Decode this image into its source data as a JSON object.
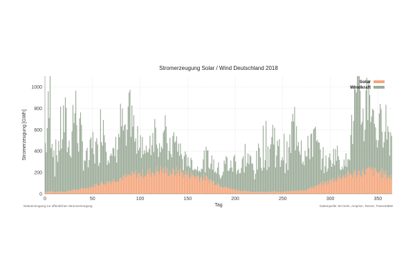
{
  "chart_data": {
    "type": "bar",
    "stacked": true,
    "title": "Stromerzeugung Solar / Wind Deutschland 2018",
    "xlabel": "Tag",
    "ylabel": "Stromerzeugung [GWh]",
    "xlim": [
      0,
      365
    ],
    "ylim": [
      0,
      1100
    ],
    "x_ticks": [
      0,
      50,
      100,
      150,
      200,
      250,
      300,
      350
    ],
    "y_ticks": [
      0,
      200,
      400,
      600,
      800,
      1000
    ],
    "grid": true,
    "legend_position": "top-right",
    "footnote_left": "Nettoerzeugung zur öffentlichen Stromversorgung",
    "footnote_right": "Datenquelle: 50 Hertz, Amprion, Tennet, TransnetBW",
    "series": [
      {
        "name": "Solar",
        "color": "#f4a57b",
        "daily_values_sampled_every_5_days": [
          20,
          25,
          15,
          22,
          18,
          30,
          35,
          40,
          50,
          60,
          70,
          90,
          100,
          110,
          120,
          140,
          150,
          160,
          170,
          180,
          185,
          190,
          200,
          210,
          220,
          215,
          205,
          200,
          210,
          190,
          180,
          170,
          160,
          150,
          140,
          120,
          100,
          80,
          60,
          50,
          40,
          30,
          25,
          20,
          18,
          20,
          15,
          22,
          20,
          18,
          20,
          22,
          25,
          30,
          35,
          40,
          60,
          75,
          90,
          105,
          120,
          140,
          160,
          170,
          180,
          190,
          200,
          210,
          215,
          210,
          200,
          190,
          170,
          150
        ]
      },
      {
        "name": "Windkraft",
        "color": "#9bab98",
        "daily_values_sampled_every_5_days": [
          450,
          880,
          300,
          520,
          700,
          420,
          800,
          600,
          350,
          250,
          420,
          300,
          700,
          400,
          200,
          350,
          550,
          300,
          700,
          260,
          400,
          180,
          300,
          450,
          250,
          380,
          200,
          300,
          250,
          120,
          160,
          100,
          80,
          150,
          200,
          180,
          160,
          120,
          250,
          200,
          300,
          180,
          350,
          280,
          220,
          350,
          500,
          400,
          580,
          350,
          420,
          300,
          600,
          700,
          450,
          300,
          550,
          380,
          250,
          180,
          200,
          280,
          150,
          120,
          250,
          650,
          700,
          500,
          850,
          500,
          350,
          600,
          450,
          400
        ]
      }
    ]
  }
}
